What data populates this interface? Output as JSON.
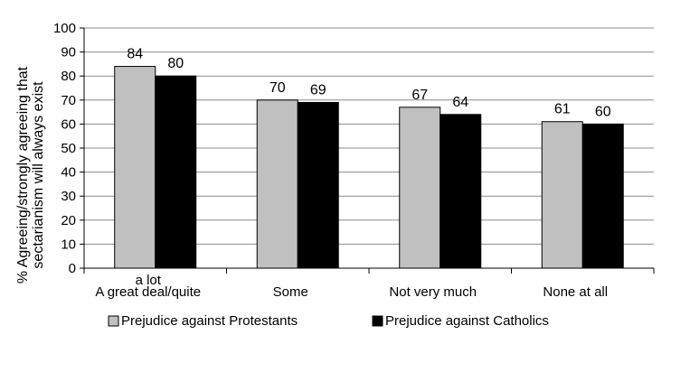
{
  "chart_data": {
    "type": "bar",
    "title": "",
    "xlabel": "",
    "ylabel": "% Agreeing/strongly agreeing that sectarianism will always exist",
    "ylabel_lines": [
      "% Agreeing/strongly agreeing that",
      "sectarianism will always exist"
    ],
    "ylim": [
      0,
      100
    ],
    "yticks": [
      0,
      10,
      20,
      30,
      40,
      50,
      60,
      70,
      80,
      90,
      100
    ],
    "grid": true,
    "legend_position": "bottom",
    "categories": [
      "A great deal/quite a lot",
      "Some",
      "Not very much",
      "None at all"
    ],
    "category_lines": [
      [
        "A great deal/quite",
        "a lot"
      ],
      [
        "Some"
      ],
      [
        "Not very much"
      ],
      [
        "None at all"
      ]
    ],
    "series": [
      {
        "name": "Prejudice against Protestants",
        "values": [
          84,
          70,
          67,
          61
        ],
        "color": "#c0c0c0"
      },
      {
        "name": "Prejudice against Catholics",
        "values": [
          80,
          69,
          64,
          60
        ],
        "color": "#000000"
      }
    ]
  }
}
